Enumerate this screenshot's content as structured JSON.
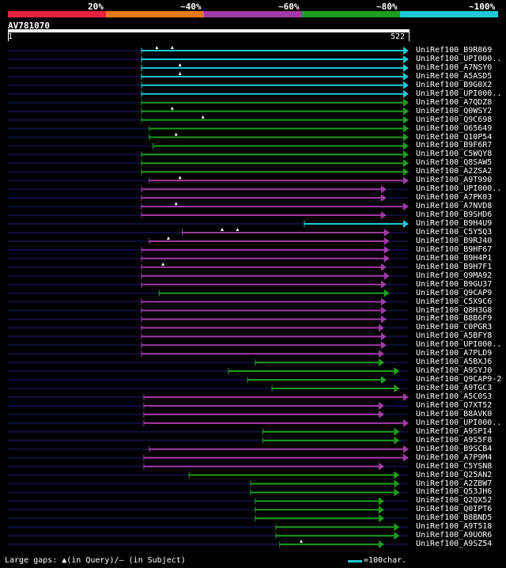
{
  "legend": {
    "segments": [
      {
        "label": "20%",
        "color": "#e8213c"
      },
      {
        "label": "~40%",
        "color": "#e87a1e"
      },
      {
        "label": "~60%",
        "color": "#a13aa6"
      },
      {
        "label": "~80%",
        "color": "#1e9e1e"
      },
      {
        "label": "~100%",
        "color": "#1ec8d6"
      }
    ]
  },
  "query": {
    "name": "AV781070",
    "start": "1",
    "end": "522",
    "length": 522
  },
  "footer": {
    "gaps_text": "Large gaps: ▲(in Query)/– (in Subject)",
    "scale_text": "=100char."
  },
  "colors": {
    "cyan": "#1ec8d6",
    "green": "#1e9e1e",
    "purple": "#a13aa6",
    "navy": "#101040"
  },
  "hits": [
    {
      "name": "UniRef100_B9R869",
      "color": "cyan",
      "start": 175,
      "end": 522,
      "gaps": [
        195,
        215
      ]
    },
    {
      "name": "UniRef100_UPI000..",
      "color": "cyan",
      "start": 175,
      "end": 522,
      "gaps": [],
      "notch": true
    },
    {
      "name": "UniRef100_A7NSY0",
      "color": "cyan",
      "start": 175,
      "end": 522,
      "gaps": [
        225
      ]
    },
    {
      "name": "UniRef100_A5ASD5",
      "color": "cyan",
      "start": 175,
      "end": 522,
      "gaps": [
        225
      ]
    },
    {
      "name": "UniRef100_B9G0X2",
      "color": "cyan",
      "start": 175,
      "end": 522,
      "gaps": []
    },
    {
      "name": "UniRef100_UPI000..",
      "color": "cyan",
      "start": 175,
      "end": 522,
      "gaps": [],
      "notch": true
    },
    {
      "name": "UniRef100_A7QDZ8",
      "color": "green",
      "start": 175,
      "end": 522,
      "gaps": []
    },
    {
      "name": "UniRef100_Q0WSY2",
      "color": "green",
      "start": 175,
      "end": 522,
      "gaps": [
        215
      ]
    },
    {
      "name": "UniRef100_Q9C698",
      "color": "green",
      "start": 175,
      "end": 522,
      "gaps": [
        255
      ]
    },
    {
      "name": "UniRef100_O65649",
      "color": "green",
      "start": 185,
      "end": 522,
      "gaps": []
    },
    {
      "name": "UniRef100_Q10P54",
      "color": "green",
      "start": 185,
      "end": 522,
      "gaps": [
        220
      ]
    },
    {
      "name": "UniRef100_B9F6R7",
      "color": "green",
      "start": 190,
      "end": 522,
      "gaps": []
    },
    {
      "name": "UniRef100_C5WQY8",
      "color": "green",
      "start": 175,
      "end": 522,
      "gaps": []
    },
    {
      "name": "UniRef100_Q8SAW5",
      "color": "green",
      "start": 175,
      "end": 522,
      "gaps": []
    },
    {
      "name": "UniRef100_A2ZSA2",
      "color": "green",
      "start": 175,
      "end": 522,
      "gaps": []
    },
    {
      "name": "UniRef100_A9T990",
      "color": "purple",
      "start": 185,
      "end": 522,
      "gaps": [
        225
      ]
    },
    {
      "name": "UniRef100_UPI000..",
      "color": "purple",
      "start": 175,
      "end": 493,
      "gaps": []
    },
    {
      "name": "UniRef100_A7PK03",
      "color": "purple",
      "start": 175,
      "end": 493,
      "gaps": []
    },
    {
      "name": "UniRef100_A7NVD8",
      "color": "purple",
      "start": 175,
      "end": 522,
      "gaps": [
        220
      ]
    },
    {
      "name": "UniRef100_B9SHD6",
      "color": "purple",
      "start": 175,
      "end": 493,
      "gaps": []
    },
    {
      "name": "UniRef100_B9H4U9",
      "color": "cyan",
      "start": 387,
      "end": 522,
      "gaps": []
    },
    {
      "name": "UniRef100_C5Y5Q3",
      "color": "purple",
      "start": 228,
      "end": 497,
      "gaps": [
        280,
        300
      ]
    },
    {
      "name": "UniRef100_B9RJ40",
      "color": "purple",
      "start": 185,
      "end": 497,
      "gaps": [
        210
      ]
    },
    {
      "name": "UniRef100_B9HF67",
      "color": "purple",
      "start": 175,
      "end": 497,
      "gaps": []
    },
    {
      "name": "UniRef100_B9H4P1",
      "color": "purple",
      "start": 175,
      "end": 497,
      "gaps": []
    },
    {
      "name": "UniRef100_B9H7F1",
      "color": "purple",
      "start": 175,
      "end": 493,
      "gaps": [
        203
      ]
    },
    {
      "name": "UniRef100_Q9MA92",
      "color": "purple",
      "start": 175,
      "end": 497,
      "gaps": []
    },
    {
      "name": "UniRef100_B9GU37",
      "color": "purple",
      "start": 175,
      "end": 493,
      "gaps": []
    },
    {
      "name": "UniRef100_Q9CAP9",
      "color": "green",
      "start": 198,
      "end": 497,
      "gaps": []
    },
    {
      "name": "UniRef100_C5X9C6",
      "color": "purple",
      "start": 175,
      "end": 493,
      "gaps": []
    },
    {
      "name": "UniRef100_Q8H3G8",
      "color": "purple",
      "start": 175,
      "end": 493,
      "gaps": []
    },
    {
      "name": "UniRef100_B8B6F9",
      "color": "purple",
      "start": 175,
      "end": 493,
      "gaps": []
    },
    {
      "name": "UniRef100_C0PGR3",
      "color": "purple",
      "start": 175,
      "end": 490,
      "gaps": []
    },
    {
      "name": "UniRef100_A5BFY8",
      "color": "purple",
      "start": 175,
      "end": 493,
      "gaps": []
    },
    {
      "name": "UniRef100_UPI000..",
      "color": "purple",
      "start": 175,
      "end": 493,
      "gaps": []
    },
    {
      "name": "UniRef100_A7PLD9",
      "color": "purple",
      "start": 175,
      "end": 490,
      "gaps": []
    },
    {
      "name": "UniRef100_A5BXJ6",
      "color": "green",
      "start": 323,
      "end": 490,
      "gaps": []
    },
    {
      "name": "UniRef100_A9SYJ0",
      "color": "green",
      "start": 288,
      "end": 510,
      "gaps": []
    },
    {
      "name": "UniRef100_Q9CAP9-2",
      "color": "green",
      "start": 313,
      "end": 493,
      "gaps": []
    },
    {
      "name": "UniRef100_A9TGC3",
      "color": "green",
      "start": 345,
      "end": 510,
      "gaps": []
    },
    {
      "name": "UniRef100_A5C0S3",
      "color": "purple",
      "start": 178,
      "end": 522,
      "gaps": []
    },
    {
      "name": "UniRef100_Q7XT52",
      "color": "purple",
      "start": 178,
      "end": 490,
      "gaps": []
    },
    {
      "name": "UniRef100_B8AVK0",
      "color": "purple",
      "start": 178,
      "end": 490,
      "gaps": []
    },
    {
      "name": "UniRef100_UPI000..",
      "color": "purple",
      "start": 178,
      "end": 522,
      "gaps": []
    },
    {
      "name": "UniRef100_A9SPI4",
      "color": "green",
      "start": 333,
      "end": 510,
      "gaps": []
    },
    {
      "name": "UniRef100_A9S5F8",
      "color": "green",
      "start": 333,
      "end": 510,
      "gaps": []
    },
    {
      "name": "UniRef100_B9SCB4",
      "color": "purple",
      "start": 185,
      "end": 522,
      "gaps": []
    },
    {
      "name": "UniRef100_A7P9M4",
      "color": "purple",
      "start": 178,
      "end": 522,
      "gaps": []
    },
    {
      "name": "UniRef100_C5YSN8",
      "color": "purple",
      "start": 178,
      "end": 490,
      "gaps": []
    },
    {
      "name": "UniRef100_Q25AN2",
      "color": "green",
      "start": 237,
      "end": 510,
      "gaps": []
    },
    {
      "name": "UniRef100_A2ZBW7",
      "color": "green",
      "start": 317,
      "end": 510,
      "gaps": []
    },
    {
      "name": "UniRef100_Q53JH6",
      "color": "green",
      "start": 317,
      "end": 510,
      "gaps": []
    },
    {
      "name": "UniRef100_Q2QX52",
      "color": "green",
      "start": 323,
      "end": 490,
      "gaps": []
    },
    {
      "name": "UniRef100_Q0IPT6",
      "color": "green",
      "start": 323,
      "end": 490,
      "gaps": []
    },
    {
      "name": "UniRef100_B8BND5",
      "color": "green",
      "start": 323,
      "end": 490,
      "gaps": []
    },
    {
      "name": "UniRef100_A9T518",
      "color": "green",
      "start": 350,
      "end": 510,
      "gaps": []
    },
    {
      "name": "UniRef100_A9UOR6",
      "color": "green",
      "start": 350,
      "end": 510,
      "gaps": []
    },
    {
      "name": "UniRef100_A9SZ54",
      "color": "green",
      "start": 355,
      "end": 490,
      "gaps": [
        383
      ]
    }
  ]
}
